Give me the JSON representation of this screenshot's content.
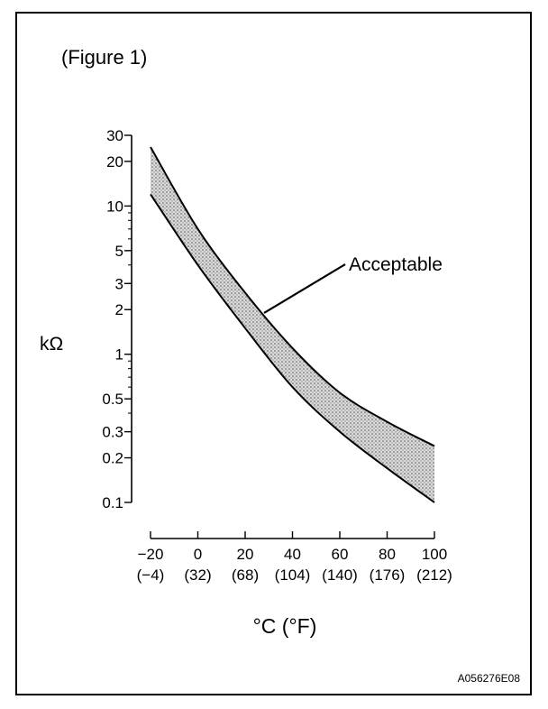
{
  "figure_label": "(Figure 1)",
  "image_code": "A056276E08",
  "chart_data": {
    "type": "area",
    "title": "",
    "ylabel": "kΩ",
    "xlabel": "°C (°F)",
    "y_scale": "log",
    "ylim": [
      0.1,
      30
    ],
    "xlim": [
      -20,
      100
    ],
    "y_ticks": [
      {
        "value": 30,
        "label": "30"
      },
      {
        "value": 20,
        "label": "20"
      },
      {
        "value": 10,
        "label": "10"
      },
      {
        "value": 5,
        "label": "5"
      },
      {
        "value": 3,
        "label": "3"
      },
      {
        "value": 2,
        "label": "2"
      },
      {
        "value": 1,
        "label": "1"
      },
      {
        "value": 0.5,
        "label": "0.5"
      },
      {
        "value": 0.3,
        "label": "0.3"
      },
      {
        "value": 0.2,
        "label": "0.2"
      },
      {
        "value": 0.1,
        "label": "0.1"
      }
    ],
    "x_ticks": [
      {
        "value": -20,
        "label": "−20",
        "label_f": "(−4)"
      },
      {
        "value": 0,
        "label": "0",
        "label_f": "(32)"
      },
      {
        "value": 20,
        "label": "20",
        "label_f": "(68)"
      },
      {
        "value": 40,
        "label": "40",
        "label_f": "(104)"
      },
      {
        "value": 60,
        "label": "60",
        "label_f": "(140)"
      },
      {
        "value": 80,
        "label": "80",
        "label_f": "(176)"
      },
      {
        "value": 100,
        "label": "100",
        "label_f": "(212)"
      }
    ],
    "series": [
      {
        "x": [
          -20,
          0,
          20,
          40,
          60,
          80,
          100
        ],
        "upper": [
          25,
          7,
          2.6,
          1.1,
          0.55,
          0.35,
          0.24
        ],
        "lower": [
          12,
          4,
          1.5,
          0.6,
          0.3,
          0.17,
          0.1
        ]
      }
    ],
    "annotations": [
      {
        "text": "Acceptable",
        "target_x": 28,
        "target_y": 1.9
      }
    ],
    "colors": {
      "band_fill": "#bfbfbf",
      "line": "#000000"
    },
    "grid": false
  }
}
